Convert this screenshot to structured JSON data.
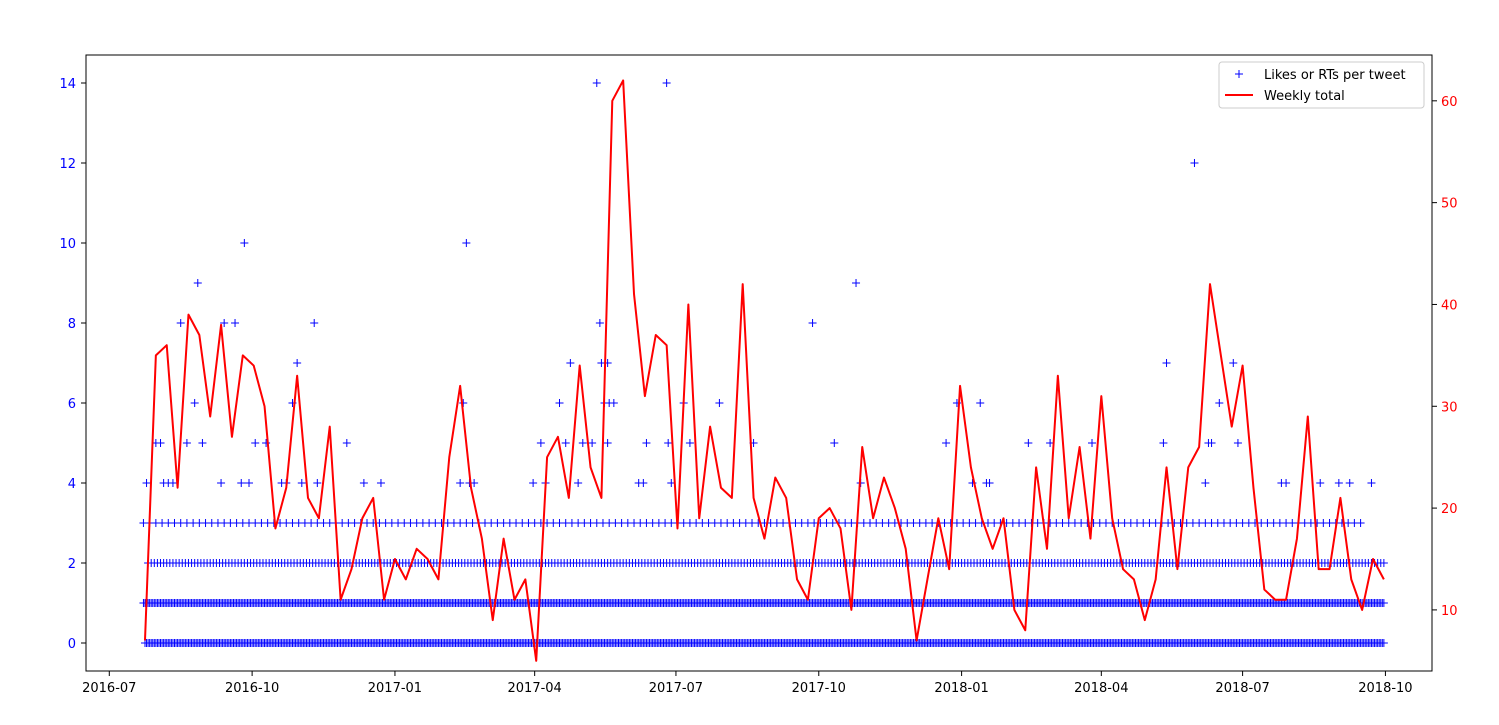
{
  "chart_data": {
    "type": "scatter",
    "x_axis": {
      "type": "date",
      "range": [
        "2016-06-16",
        "2018-10-31"
      ],
      "tick_labels": [
        "2016-07",
        "2016-10",
        "2017-01",
        "2017-04",
        "2017-07",
        "2017-10",
        "2018-01",
        "2018-04",
        "2018-07",
        "2018-10"
      ]
    },
    "y_left": {
      "ylim": [
        -0.7,
        14.7
      ],
      "tick_labels": [
        "0",
        "2",
        "4",
        "6",
        "8",
        "10",
        "12",
        "14"
      ],
      "color": "#0000ff"
    },
    "y_right": {
      "ylim": [
        4,
        64.5
      ],
      "tick_labels": [
        "10",
        "20",
        "30",
        "40",
        "50",
        "60"
      ],
      "color": "#ff0000"
    },
    "legend": {
      "position": "top-right"
    },
    "series": [
      {
        "name": "Likes or RTs per tweet",
        "kind": "scatter",
        "marker": "+",
        "color": "#0000ff",
        "axis": "left",
        "levels": [
          {
            "y": 0,
            "start": "2016-07-24",
            "end": "2018-09-30",
            "step_days": 1
          },
          {
            "y": 1,
            "start": "2016-07-23",
            "end": "2018-09-30",
            "step_days": 1
          },
          {
            "y": 2,
            "start": "2016-07-26",
            "end": "2018-09-30",
            "step_days": 2
          },
          {
            "y": 3,
            "start": "2016-07-23",
            "end": "2018-09-15",
            "step_days": 4
          }
        ],
        "points": [
          [
            "2016-07-25",
            4
          ],
          [
            "2016-07-31",
            5
          ],
          [
            "2016-08-03",
            5
          ],
          [
            "2016-08-05",
            4
          ],
          [
            "2016-08-08",
            4
          ],
          [
            "2016-08-11",
            4
          ],
          [
            "2016-08-16",
            8
          ],
          [
            "2016-08-20",
            5
          ],
          [
            "2016-08-25",
            6
          ],
          [
            "2016-08-27",
            9
          ],
          [
            "2016-08-30",
            5
          ],
          [
            "2016-09-11",
            4
          ],
          [
            "2016-09-13",
            8
          ],
          [
            "2016-09-20",
            8
          ],
          [
            "2016-09-24",
            4
          ],
          [
            "2016-09-26",
            10
          ],
          [
            "2016-09-29",
            4
          ],
          [
            "2016-10-03",
            5
          ],
          [
            "2016-10-10",
            5
          ],
          [
            "2016-10-20",
            4
          ],
          [
            "2016-10-23",
            4
          ],
          [
            "2016-10-27",
            6
          ],
          [
            "2016-10-30",
            7
          ],
          [
            "2016-11-02",
            4
          ],
          [
            "2016-11-10",
            8
          ],
          [
            "2016-11-12",
            4
          ],
          [
            "2016-12-01",
            5
          ],
          [
            "2016-12-12",
            4
          ],
          [
            "2016-12-23",
            4
          ],
          [
            "2017-02-12",
            4
          ],
          [
            "2017-02-14",
            6
          ],
          [
            "2017-02-16",
            10
          ],
          [
            "2017-02-18",
            4
          ],
          [
            "2017-02-21",
            4
          ],
          [
            "2017-03-31",
            4
          ],
          [
            "2017-04-05",
            5
          ],
          [
            "2017-04-08",
            4
          ],
          [
            "2017-04-17",
            6
          ],
          [
            "2017-04-21",
            5
          ],
          [
            "2017-04-24",
            7
          ],
          [
            "2017-04-29",
            4
          ],
          [
            "2017-05-02",
            5
          ],
          [
            "2017-05-08",
            5
          ],
          [
            "2017-05-11",
            14
          ],
          [
            "2017-05-13",
            8
          ],
          [
            "2017-05-14",
            7
          ],
          [
            "2017-05-16",
            6
          ],
          [
            "2017-05-18",
            7
          ],
          [
            "2017-05-18",
            5
          ],
          [
            "2017-05-19",
            6
          ],
          [
            "2017-05-22",
            6
          ],
          [
            "2017-06-07",
            4
          ],
          [
            "2017-06-10",
            4
          ],
          [
            "2017-06-12",
            5
          ],
          [
            "2017-06-25",
            14
          ],
          [
            "2017-06-26",
            5
          ],
          [
            "2017-06-28",
            4
          ],
          [
            "2017-07-06",
            6
          ],
          [
            "2017-07-10",
            5
          ],
          [
            "2017-07-29",
            6
          ],
          [
            "2017-08-20",
            5
          ],
          [
            "2017-09-27",
            8
          ],
          [
            "2017-10-11",
            5
          ],
          [
            "2017-10-25",
            9
          ],
          [
            "2017-10-28",
            4
          ],
          [
            "2017-12-22",
            5
          ],
          [
            "2017-12-29",
            6
          ],
          [
            "2018-01-08",
            4
          ],
          [
            "2018-01-13",
            6
          ],
          [
            "2018-01-17",
            4
          ],
          [
            "2018-01-19",
            4
          ],
          [
            "2018-02-13",
            5
          ],
          [
            "2018-02-27",
            5
          ],
          [
            "2018-03-26",
            5
          ],
          [
            "2018-05-11",
            5
          ],
          [
            "2018-05-13",
            7
          ],
          [
            "2018-05-31",
            12
          ],
          [
            "2018-06-07",
            4
          ],
          [
            "2018-06-09",
            5
          ],
          [
            "2018-06-11",
            5
          ],
          [
            "2018-06-16",
            6
          ],
          [
            "2018-06-25",
            7
          ],
          [
            "2018-06-28",
            5
          ],
          [
            "2018-07-26",
            4
          ],
          [
            "2018-07-29",
            4
          ],
          [
            "2018-08-20",
            4
          ],
          [
            "2018-09-01",
            4
          ],
          [
            "2018-09-08",
            4
          ],
          [
            "2018-09-22",
            4
          ]
        ]
      },
      {
        "name": "Weekly total",
        "kind": "line",
        "color": "#ff0000",
        "axis": "right",
        "start": "2016-07-24",
        "step_days": 7,
        "values": [
          7,
          35,
          36,
          22,
          39,
          37,
          29,
          38,
          27,
          35,
          34,
          30,
          18,
          22,
          33,
          21,
          19,
          28,
          11,
          14,
          19,
          21,
          11,
          15,
          13,
          16,
          15,
          13,
          25,
          32,
          22,
          17,
          9,
          17,
          11,
          13,
          5,
          25,
          27,
          21,
          34,
          24,
          21,
          60,
          62,
          41,
          31,
          37,
          36,
          18,
          40,
          19,
          28,
          22,
          21,
          42,
          21,
          17,
          23,
          21,
          13,
          11,
          19,
          20,
          18,
          10,
          26,
          19,
          23,
          20,
          16,
          7,
          13,
          19,
          14,
          32,
          24,
          19,
          16,
          19,
          10,
          8,
          24,
          16,
          33,
          19,
          26,
          17,
          31,
          19,
          14,
          13,
          9,
          13,
          24,
          14,
          24,
          26,
          42,
          35,
          28,
          34,
          22,
          12,
          11,
          11,
          17,
          29,
          14,
          14,
          21,
          13,
          10,
          15,
          13
        ]
      }
    ]
  }
}
